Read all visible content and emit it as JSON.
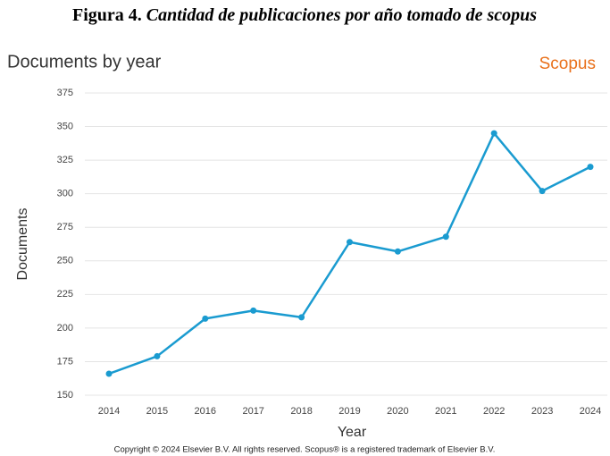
{
  "figure_label": "Figura 4.",
  "caption": "Cantidad de publicaciones por año tomado de scopus",
  "chart_data": {
    "type": "line",
    "title": "Documents by year",
    "brand": "Scopus",
    "x_label": "Year",
    "y_label": "Documents",
    "categories": [
      "2014",
      "2015",
      "2016",
      "2017",
      "2018",
      "2019",
      "2020",
      "2021",
      "2022",
      "2023",
      "2024"
    ],
    "values": [
      166,
      179,
      207,
      213,
      208,
      264,
      257,
      268,
      345,
      302,
      320
    ],
    "color": "#1a9bd0",
    "ylim": [
      150,
      375
    ],
    "yticks": [
      150,
      175,
      200,
      225,
      250,
      275,
      300,
      325,
      350,
      375
    ],
    "grid": true
  },
  "footer": "Copyright © 2024 Elsevier B.V. All rights reserved. Scopus® is a registered trademark of Elsevier B.V."
}
